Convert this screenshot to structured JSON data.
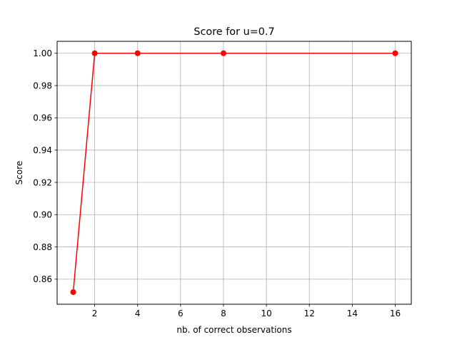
{
  "chart_data": {
    "type": "line",
    "title": "Score for u=0.7",
    "xlabel": "nb. of correct observations",
    "ylabel": "Score",
    "xlim": [
      0.25,
      16.75
    ],
    "ylim": [
      0.8445,
      1.0074
    ],
    "xticks": [
      2,
      4,
      6,
      8,
      10,
      12,
      14,
      16
    ],
    "xtick_labels": [
      "2",
      "4",
      "6",
      "8",
      "10",
      "12",
      "14",
      "16"
    ],
    "yticks": [
      0.86,
      0.88,
      0.9,
      0.92,
      0.94,
      0.96,
      0.98,
      1.0
    ],
    "ytick_labels": [
      "0.86",
      "0.88",
      "0.90",
      "0.92",
      "0.94",
      "0.96",
      "0.98",
      "1.00"
    ],
    "grid": true,
    "legend": false,
    "series": [
      {
        "color": "#ff0000",
        "marker": "circle",
        "x": [
          1,
          2,
          4,
          8,
          16
        ],
        "y": [
          0.852,
          1.0,
          1.0,
          1.0,
          1.0
        ]
      }
    ]
  }
}
